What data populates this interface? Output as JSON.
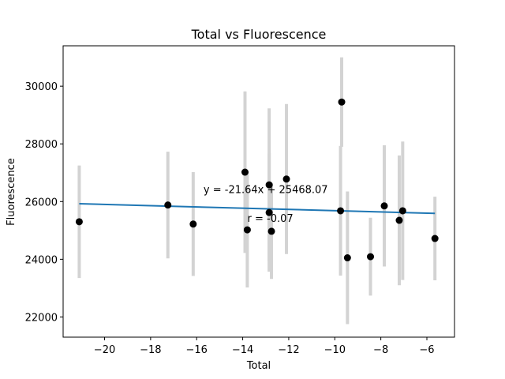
{
  "chart_data": {
    "type": "scatter",
    "title": "Total vs Fluorescence",
    "xlabel": "Total",
    "ylabel": "Fluorescence",
    "xlim": [
      -21.8,
      -4.8
    ],
    "ylim": [
      21300,
      31400
    ],
    "x_ticks": [
      -20,
      -18,
      -16,
      -14,
      -12,
      -10,
      -8,
      -6
    ],
    "y_ticks": [
      22000,
      24000,
      26000,
      28000,
      30000
    ],
    "x_tick_labels": [
      "−20",
      "−18",
      "−16",
      "−14",
      "−12",
      "−10",
      "−8",
      "−6"
    ],
    "y_tick_labels": [
      "22000",
      "24000",
      "26000",
      "28000",
      "30000"
    ],
    "grid": false,
    "points": [
      {
        "x": -21.1,
        "y": 25300,
        "err": 1950
      },
      {
        "x": -17.25,
        "y": 25880,
        "err": 1850
      },
      {
        "x": -16.15,
        "y": 25220,
        "err": 1800
      },
      {
        "x": -13.9,
        "y": 27020,
        "err": 2800
      },
      {
        "x": -13.8,
        "y": 25020,
        "err": 2000
      },
      {
        "x": -12.85,
        "y": 26580,
        "err": 2650
      },
      {
        "x": -12.85,
        "y": 25620,
        "err": 2050
      },
      {
        "x": -12.75,
        "y": 24970,
        "err": 1650
      },
      {
        "x": -12.1,
        "y": 26780,
        "err": 2600
      },
      {
        "x": -9.75,
        "y": 25680,
        "err": 2250
      },
      {
        "x": -9.7,
        "y": 29450,
        "err": 1550
      },
      {
        "x": -9.45,
        "y": 24050,
        "err": 2300
      },
      {
        "x": -8.45,
        "y": 24090,
        "err": 1350
      },
      {
        "x": -7.85,
        "y": 25850,
        "err": 2100
      },
      {
        "x": -7.2,
        "y": 25350,
        "err": 2250
      },
      {
        "x": -7.05,
        "y": 25680,
        "err": 2400
      },
      {
        "x": -5.65,
        "y": 24720,
        "err": 1450
      }
    ],
    "fit": {
      "slope": -21.64,
      "intercept": 25468.07,
      "x_range": [
        -21.1,
        -5.65
      ],
      "color": "#1f77b4"
    },
    "point_color": "#000000",
    "errorbar_color": "#d3d3d3",
    "annotations": {
      "equation": "y = -21.64x + 25468.07",
      "equation_pos": {
        "x": -13.0,
        "y": 26300
      },
      "r_value": "r = -0.07",
      "r_pos": {
        "x": -12.8,
        "y": 25300
      }
    }
  }
}
